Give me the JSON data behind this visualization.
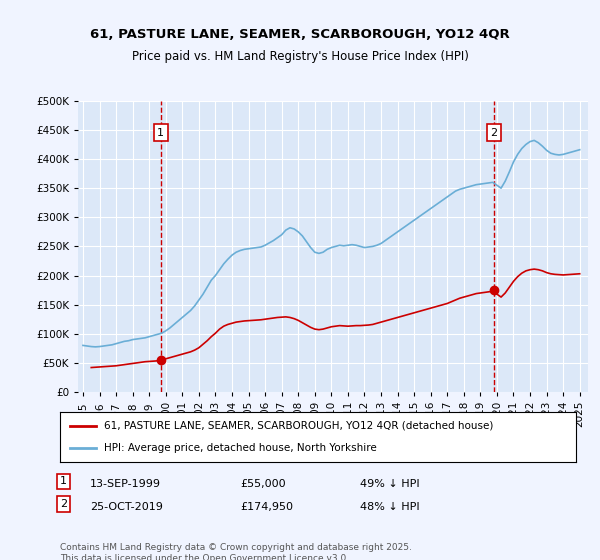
{
  "title": "61, PASTURE LANE, SEAMER, SCARBOROUGH, YO12 4QR",
  "subtitle": "Price paid vs. HM Land Registry's House Price Index (HPI)",
  "background_color": "#f0f4ff",
  "plot_bg_color": "#dce8f8",
  "ylim": [
    0,
    500000
  ],
  "yticks": [
    0,
    50000,
    100000,
    150000,
    200000,
    250000,
    300000,
    350000,
    400000,
    450000,
    500000
  ],
  "xlim_start": 1995,
  "xlim_end": 2025.5,
  "legend_label_red": "61, PASTURE LANE, SEAMER, SCARBOROUGH, YO12 4QR (detached house)",
  "legend_label_blue": "HPI: Average price, detached house, North Yorkshire",
  "footnote": "Contains HM Land Registry data © Crown copyright and database right 2025.\nThis data is licensed under the Open Government Licence v3.0.",
  "sale1_date": "13-SEP-1999",
  "sale1_price": "£55,000",
  "sale1_hpi": "49% ↓ HPI",
  "sale1_x": 1999.7,
  "sale2_date": "25-OCT-2019",
  "sale2_price": "£174,950",
  "sale2_hpi": "48% ↓ HPI",
  "sale2_x": 2019.8,
  "hpi_color": "#6aaed6",
  "price_color": "#cc0000",
  "vline_color": "#cc0000",
  "marker_color": "#cc0000",
  "hpi_data_x": [
    1995.0,
    1995.25,
    1995.5,
    1995.75,
    1996.0,
    1996.25,
    1996.5,
    1996.75,
    1997.0,
    1997.25,
    1997.5,
    1997.75,
    1998.0,
    1998.25,
    1998.5,
    1998.75,
    1999.0,
    1999.25,
    1999.5,
    1999.75,
    2000.0,
    2000.25,
    2000.5,
    2000.75,
    2001.0,
    2001.25,
    2001.5,
    2001.75,
    2002.0,
    2002.25,
    2002.5,
    2002.75,
    2003.0,
    2003.25,
    2003.5,
    2003.75,
    2004.0,
    2004.25,
    2004.5,
    2004.75,
    2005.0,
    2005.25,
    2005.5,
    2005.75,
    2006.0,
    2006.25,
    2006.5,
    2006.75,
    2007.0,
    2007.25,
    2007.5,
    2007.75,
    2008.0,
    2008.25,
    2008.5,
    2008.75,
    2009.0,
    2009.25,
    2009.5,
    2009.75,
    2010.0,
    2010.25,
    2010.5,
    2010.75,
    2011.0,
    2011.25,
    2011.5,
    2011.75,
    2012.0,
    2012.25,
    2012.5,
    2012.75,
    2013.0,
    2013.25,
    2013.5,
    2013.75,
    2014.0,
    2014.25,
    2014.5,
    2014.75,
    2015.0,
    2015.25,
    2015.5,
    2015.75,
    2016.0,
    2016.25,
    2016.5,
    2016.75,
    2017.0,
    2017.25,
    2017.5,
    2017.75,
    2018.0,
    2018.25,
    2018.5,
    2018.75,
    2019.0,
    2019.25,
    2019.5,
    2019.75,
    2020.0,
    2020.25,
    2020.5,
    2020.75,
    2021.0,
    2021.25,
    2021.5,
    2021.75,
    2022.0,
    2022.25,
    2022.5,
    2022.75,
    2023.0,
    2023.25,
    2023.5,
    2023.75,
    2024.0,
    2024.25,
    2024.5,
    2024.75,
    2025.0
  ],
  "hpi_data_y": [
    80000,
    79000,
    78000,
    77500,
    78000,
    79000,
    80000,
    81000,
    83000,
    85000,
    87000,
    88000,
    90000,
    91000,
    92000,
    93000,
    95000,
    97000,
    99000,
    101000,
    105000,
    110000,
    116000,
    122000,
    128000,
    134000,
    140000,
    148000,
    158000,
    168000,
    180000,
    192000,
    200000,
    210000,
    220000,
    228000,
    235000,
    240000,
    243000,
    245000,
    246000,
    247000,
    248000,
    249000,
    252000,
    256000,
    260000,
    265000,
    270000,
    278000,
    282000,
    280000,
    275000,
    268000,
    258000,
    248000,
    240000,
    238000,
    240000,
    245000,
    248000,
    250000,
    252000,
    251000,
    252000,
    253000,
    252000,
    250000,
    248000,
    249000,
    250000,
    252000,
    255000,
    260000,
    265000,
    270000,
    275000,
    280000,
    285000,
    290000,
    295000,
    300000,
    305000,
    310000,
    315000,
    320000,
    325000,
    330000,
    335000,
    340000,
    345000,
    348000,
    350000,
    352000,
    354000,
    356000,
    357000,
    358000,
    359000,
    360000,
    355000,
    350000,
    362000,
    378000,
    395000,
    408000,
    418000,
    425000,
    430000,
    432000,
    428000,
    422000,
    415000,
    410000,
    408000,
    407000,
    408000,
    410000,
    412000,
    414000,
    416000
  ],
  "price_data_x": [
    1995.5,
    1995.75,
    1996.0,
    1996.25,
    1996.5,
    1996.75,
    1997.0,
    1997.25,
    1997.5,
    1997.75,
    1998.0,
    1998.25,
    1998.5,
    1998.75,
    1999.0,
    1999.25,
    1999.5,
    1999.75,
    2000.0,
    2000.25,
    2000.5,
    2000.75,
    2001.0,
    2001.25,
    2001.5,
    2001.75,
    2002.0,
    2002.25,
    2002.5,
    2002.75,
    2003.0,
    2003.25,
    2003.5,
    2003.75,
    2004.0,
    2004.25,
    2004.5,
    2004.75,
    2005.0,
    2005.25,
    2005.5,
    2005.75,
    2006.0,
    2006.25,
    2006.5,
    2006.75,
    2007.0,
    2007.25,
    2007.5,
    2007.75,
    2008.0,
    2008.25,
    2008.5,
    2008.75,
    2009.0,
    2009.25,
    2009.5,
    2009.75,
    2010.0,
    2010.25,
    2010.5,
    2010.75,
    2011.0,
    2011.25,
    2011.5,
    2011.75,
    2012.0,
    2012.25,
    2012.5,
    2012.75,
    2013.0,
    2013.25,
    2013.5,
    2013.75,
    2014.0,
    2014.25,
    2014.5,
    2014.75,
    2015.0,
    2015.25,
    2015.5,
    2015.75,
    2016.0,
    2016.25,
    2016.5,
    2016.75,
    2017.0,
    2017.25,
    2017.5,
    2017.75,
    2018.0,
    2018.25,
    2018.5,
    2018.75,
    2019.0,
    2019.25,
    2019.5,
    2019.75,
    2020.0,
    2020.25,
    2020.5,
    2020.75,
    2021.0,
    2021.25,
    2021.5,
    2021.75,
    2022.0,
    2022.25,
    2022.5,
    2022.75,
    2023.0,
    2023.25,
    2023.5,
    2023.75,
    2024.0,
    2024.25,
    2024.5,
    2024.75,
    2025.0
  ],
  "price_data_y": [
    42000,
    42500,
    43000,
    43500,
    44000,
    44500,
    45000,
    46000,
    47000,
    48000,
    49000,
    50000,
    51000,
    52000,
    52500,
    53000,
    53500,
    55000,
    57000,
    59000,
    61000,
    63000,
    65000,
    67000,
    69000,
    72000,
    76000,
    82000,
    88000,
    95000,
    101000,
    108000,
    113000,
    116000,
    118000,
    120000,
    121000,
    122000,
    122500,
    123000,
    123500,
    124000,
    125000,
    126000,
    127000,
    128000,
    128500,
    129000,
    128000,
    126000,
    123000,
    119000,
    115000,
    111000,
    108000,
    107000,
    108000,
    110000,
    112000,
    113000,
    114000,
    113500,
    113000,
    113500,
    114000,
    114000,
    114500,
    115000,
    116000,
    118000,
    120000,
    122000,
    124000,
    126000,
    128000,
    130000,
    132000,
    134000,
    136000,
    138000,
    140000,
    142000,
    144000,
    146000,
    148000,
    150000,
    152000,
    155000,
    158000,
    161000,
    163000,
    165000,
    167000,
    169000,
    170000,
    171000,
    172000,
    173000,
    168000,
    163000,
    170000,
    180000,
    190000,
    198000,
    204000,
    208000,
    210000,
    211000,
    210000,
    208000,
    205000,
    203000,
    202000,
    201500,
    201000,
    201500,
    202000,
    202500,
    203000
  ]
}
